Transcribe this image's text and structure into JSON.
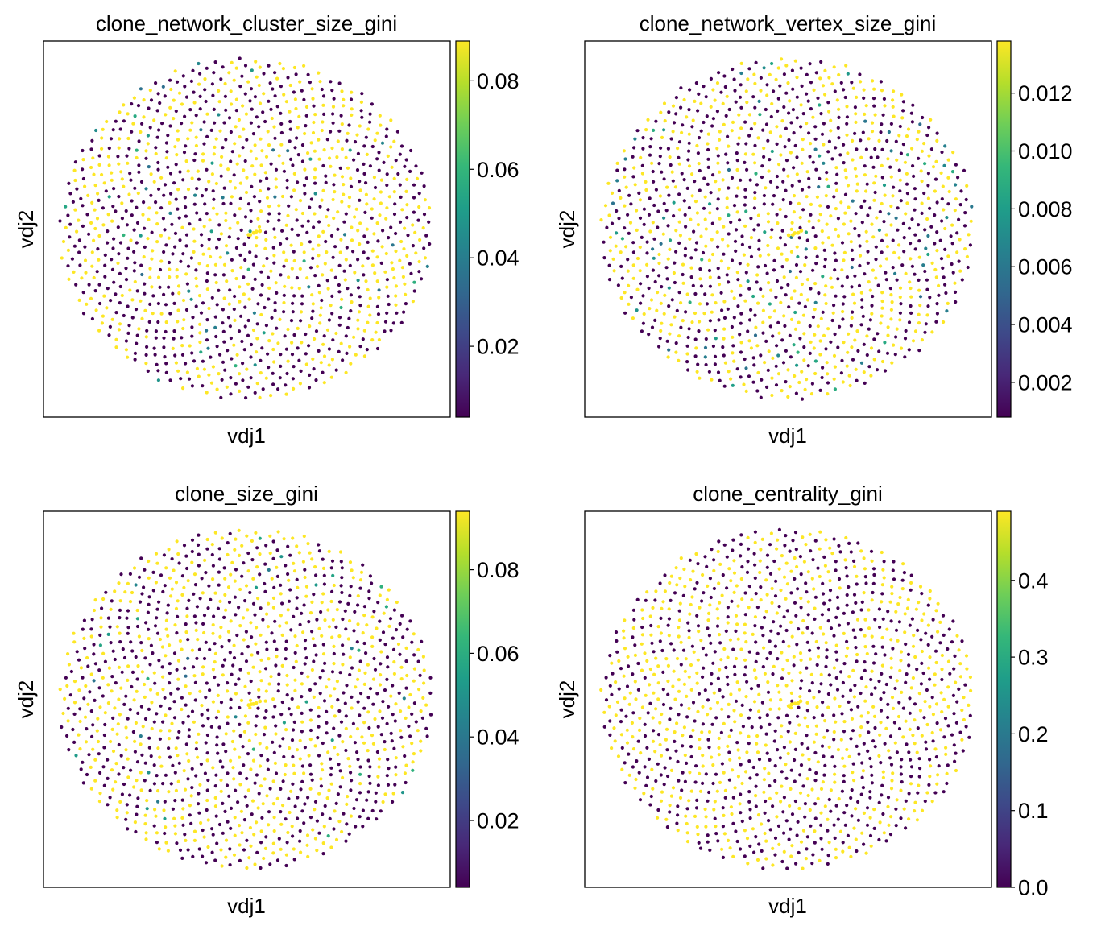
{
  "chart_data": [
    {
      "type": "scatter",
      "title": "clone_network_cluster_size_gini",
      "xlabel": "vdj1",
      "ylabel": "vdj2",
      "colorbar": {
        "colormap": "viridis",
        "min": 0.004,
        "max": 0.089,
        "ticks": [
          "0.02",
          "0.04",
          "0.06",
          "0.08"
        ]
      },
      "value_mix": {
        "low_fraction": 0.52,
        "mid_fraction": 0.04
      }
    },
    {
      "type": "scatter",
      "title": "clone_network_vertex_size_gini",
      "xlabel": "vdj1",
      "ylabel": "vdj2",
      "colorbar": {
        "colormap": "viridis",
        "min": 0.0008,
        "max": 0.0138,
        "ticks": [
          "0.002",
          "0.004",
          "0.006",
          "0.008",
          "0.010",
          "0.012"
        ]
      },
      "value_mix": {
        "low_fraction": 0.52,
        "mid_fraction": 0.06
      }
    },
    {
      "type": "scatter",
      "title": "clone_size_gini",
      "xlabel": "vdj1",
      "ylabel": "vdj2",
      "colorbar": {
        "colormap": "viridis",
        "min": 0.004,
        "max": 0.094,
        "ticks": [
          "0.02",
          "0.04",
          "0.06",
          "0.08"
        ]
      },
      "value_mix": {
        "low_fraction": 0.52,
        "mid_fraction": 0.03
      }
    },
    {
      "type": "scatter",
      "title": "clone_centrality_gini",
      "xlabel": "vdj1",
      "ylabel": "vdj2",
      "colorbar": {
        "colormap": "viridis",
        "min": 0.0,
        "max": 0.49,
        "ticks": [
          "0.0",
          "0.1",
          "0.2",
          "0.3",
          "0.4"
        ]
      },
      "value_mix": {
        "low_fraction": 0.53,
        "mid_fraction": 0.0
      }
    }
  ]
}
